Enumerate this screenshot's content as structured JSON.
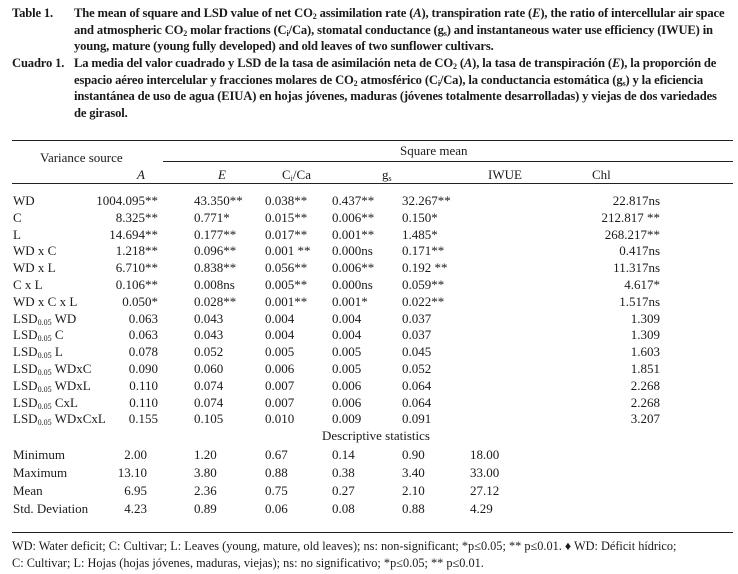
{
  "caption_en": {
    "label": "Table 1.",
    "segments": [
      {
        "t": "The mean of square and LSD value of net CO"
      },
      {
        "sub": "2"
      },
      {
        "t": " assimilation rate ("
      },
      {
        "i": "A"
      },
      {
        "t": "), transpiration rate ("
      },
      {
        "i": "E"
      },
      {
        "t": "), the ratio of intercellular air space and atmospheric CO"
      },
      {
        "sub": "2"
      },
      {
        "t": " molar fractions (C"
      },
      {
        "sub": "i"
      },
      {
        "t": "/Ca), stomatal conductance (g"
      },
      {
        "sub": "s"
      },
      {
        "t": ") and instantaneous water use efficiency (IWUE) in young, mature (young fully developed) and old leaves of two sunflower cultivars."
      }
    ]
  },
  "caption_es": {
    "label": "Cuadro 1.",
    "segments": [
      {
        "t": "La media del valor cuadrado y LSD de la tasa de asimilación neta de CO"
      },
      {
        "sub": "2"
      },
      {
        "t": " ("
      },
      {
        "i": "A"
      },
      {
        "t": "), la tasa de transpiración ("
      },
      {
        "i": "E"
      },
      {
        "t": "), la proporción de espacio aéreo intercelular y fracciones molares de CO"
      },
      {
        "sub": "2"
      },
      {
        "t": " atmosférico (C"
      },
      {
        "sub": "i"
      },
      {
        "t": "/Ca), la conductancia estomática (g"
      },
      {
        "sub": "s"
      },
      {
        "t": ") y la eficiencia instantánea de uso de agua (EIUA) en hojas jóvenes, maduras (jóvenes totalmente desarrolladas) y viejas de dos variedades de girasol."
      }
    ]
  },
  "table": {
    "stub_header": "Variance source",
    "group_header": "Square mean",
    "columns": [
      {
        "t": "A",
        "italic": true
      },
      {
        "t": "E",
        "italic": true
      },
      {
        "t": "C",
        "sub": "i",
        "t2": "/Ca"
      },
      {
        "t": "g",
        "sub": "s"
      },
      {
        "t": "IWUE"
      },
      {
        "t": "Chl"
      }
    ],
    "rows": [
      {
        "label": "WD",
        "values": [
          "1004.095**",
          "43.350**",
          "0.038**",
          "0.437**",
          "32.267**",
          "22.817ns"
        ]
      },
      {
        "label": "C",
        "values": [
          "8.325**",
          "0.771*",
          "0.015**",
          "0.006**",
          "0.150*",
          "212.817 **"
        ]
      },
      {
        "label": "L",
        "values": [
          "14.694**",
          "0.177**",
          "0.017**",
          "0.001**",
          "1.485*",
          "268.217**"
        ]
      },
      {
        "label": "WD x C",
        "values": [
          "1.218**",
          "0.096**",
          "0.001 **",
          "0.000ns",
          "0.171**",
          "0.417ns"
        ]
      },
      {
        "label": "WD x L",
        "values": [
          "6.710**",
          "0.838**",
          "0.056**",
          "0.006**",
          "0.192 **",
          "11.317ns"
        ]
      },
      {
        "label": "C x L",
        "values": [
          "0.106**",
          "0.008ns",
          "0.005**",
          "0.000ns",
          "0.059**",
          "4.617*"
        ]
      },
      {
        "label": "WD x C x L",
        "values": [
          "0.050*",
          "0.028**",
          "0.001**",
          "0.001*",
          "0.022**",
          "1.517ns"
        ]
      },
      {
        "label": "LSD",
        "sub": "0.05",
        "suffix": " WD",
        "values": [
          "0.063",
          "0.043",
          "0.004",
          "0.004",
          "0.037",
          "1.309"
        ]
      },
      {
        "label": "LSD",
        "sub": "0.05",
        "suffix": " C",
        "values": [
          "0.063",
          "0.043",
          "0.004",
          "0.004",
          "0.037",
          "1.309"
        ]
      },
      {
        "label": "LSD",
        "sub": "0.05",
        "suffix": " L",
        "values": [
          "0.078",
          "0.052",
          "0.005",
          "0.005",
          "0.045",
          "1.603"
        ]
      },
      {
        "label": "LSD",
        "sub": "0.05",
        "suffix": " WDxC",
        "values": [
          "0.090",
          "0.060",
          "0.006",
          "0.005",
          "0.052",
          "1.851"
        ]
      },
      {
        "label": "LSD",
        "sub": "0.05",
        "suffix": " WDxL",
        "values": [
          "0.110",
          "0.074",
          "0.007",
          "0.006",
          "0.064",
          "2.268"
        ]
      },
      {
        "label": "LSD",
        "sub": "0.05",
        "suffix": " CxL",
        "values": [
          "0.110",
          "0.074",
          "0.007",
          "0.006",
          "0.064",
          "2.268"
        ]
      },
      {
        "label": "LSD",
        "sub": "0.05",
        "suffix": " WDxCxL",
        "values": [
          "0.155",
          "0.105",
          "0.010",
          "0.009",
          "0.091",
          "3.207"
        ]
      }
    ],
    "desc_header": "Descriptive statistics",
    "desc_rows": [
      {
        "label": "Minimum",
        "values": [
          "2.00",
          "1.20",
          "0.67",
          "0.14",
          "0.90",
          "18.00"
        ]
      },
      {
        "label": "Maximum",
        "values": [
          "13.10",
          "3.80",
          "0.88",
          "0.38",
          "3.40",
          "33.00"
        ]
      },
      {
        "label": "Mean",
        "values": [
          "6.95",
          "2.36",
          "0.75",
          "0.27",
          "2.10",
          "27.12"
        ]
      },
      {
        "label": "Std. Deviation",
        "values": [
          "4.23",
          "0.89",
          "0.06",
          "0.08",
          "0.88",
          "4.29"
        ]
      }
    ]
  },
  "footnote": {
    "line1": "WD: Water deficit; C: Cultivar; L: Leaves (young, mature, old leaves); ns: non-significant; *p≤0.05; ** p≤0.01. ♦ WD: Déficit hídrico;",
    "line2": "C: Cultivar; L: Hojas (hojas jóvenes, maduras, viejas); ns: no significativo; *p≤0.05; ** p≤0.01."
  }
}
